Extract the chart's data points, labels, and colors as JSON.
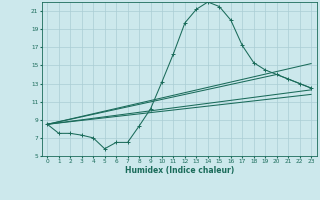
{
  "xlabel": "Humidex (Indice chaleur)",
  "bg_color": "#cce8ec",
  "grid_color": "#aacdd4",
  "line_color": "#1a6b5a",
  "xlim": [
    -0.5,
    23.5
  ],
  "ylim": [
    5,
    22
  ],
  "yticks": [
    5,
    7,
    9,
    11,
    13,
    15,
    17,
    19,
    21
  ],
  "xticks": [
    0,
    1,
    2,
    3,
    4,
    5,
    6,
    7,
    8,
    9,
    10,
    11,
    12,
    13,
    14,
    15,
    16,
    17,
    18,
    19,
    20,
    21,
    22,
    23
  ],
  "line1_x": [
    0,
    1,
    2,
    3,
    4,
    5,
    6,
    7,
    8,
    9,
    10,
    11,
    12,
    13,
    14,
    15,
    16,
    17,
    18,
    19,
    20,
    21,
    22,
    23
  ],
  "line1_y": [
    8.5,
    7.5,
    7.5,
    7.3,
    7.0,
    5.8,
    6.5,
    6.5,
    8.3,
    10.2,
    13.2,
    16.3,
    19.7,
    21.2,
    22.0,
    21.5,
    20.0,
    17.2,
    15.3,
    14.5,
    14.0,
    13.5,
    13.0,
    12.5
  ],
  "line2_x": [
    0,
    23
  ],
  "line2_y": [
    8.5,
    15.2
  ],
  "line3_x": [
    0,
    20,
    21,
    22,
    23
  ],
  "line3_y": [
    8.5,
    14.0,
    13.5,
    13.0,
    12.5
  ],
  "line4_x": [
    0,
    23
  ],
  "line4_y": [
    8.5,
    12.3
  ],
  "line5_x": [
    0,
    23
  ],
  "line5_y": [
    8.5,
    11.8
  ]
}
